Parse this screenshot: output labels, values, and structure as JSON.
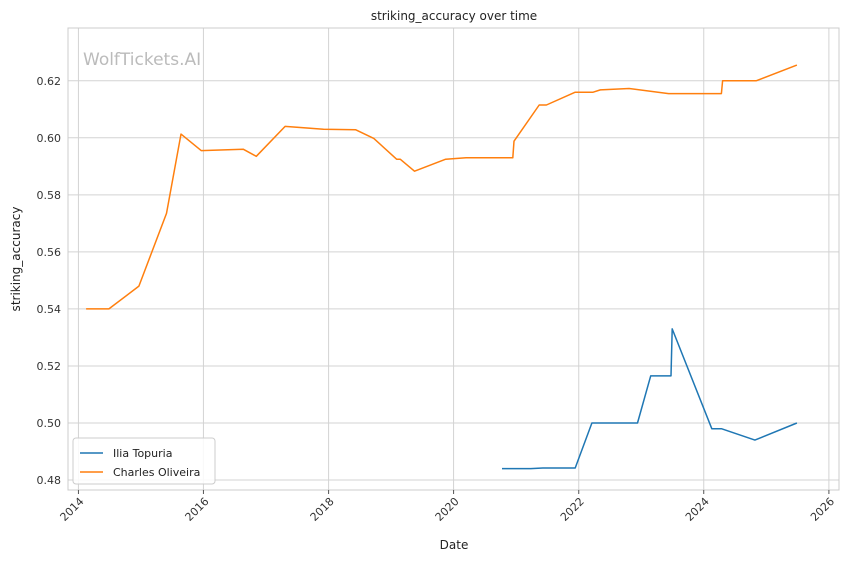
{
  "chart_data": {
    "type": "line",
    "title": "striking_accuracy over time",
    "xlabel": "Date",
    "ylabel": "striking_accuracy",
    "watermark": "WolfTickets.AI",
    "xlim": [
      "2013-11-01",
      "2026-03-01"
    ],
    "ylim": [
      0.4765,
      0.6385
    ],
    "x_ticks": [
      "2014",
      "2016",
      "2018",
      "2020",
      "2022",
      "2024",
      "2026"
    ],
    "y_ticks": [
      "0.48",
      "0.50",
      "0.52",
      "0.54",
      "0.56",
      "0.58",
      "0.60",
      "0.62"
    ],
    "grid": true,
    "legend_position": "lower-left",
    "series": [
      {
        "name": "Ilia Topuria",
        "color": "#1f77b4",
        "points": [
          [
            "2020-10-10",
            0.484
          ],
          [
            "2021-03-27",
            0.484
          ],
          [
            "2021-06-05",
            0.4842
          ],
          [
            "2021-12-11",
            0.4842
          ],
          [
            "2022-03-19",
            0.5
          ],
          [
            "2022-06-04",
            0.5
          ],
          [
            "2022-12-10",
            0.5
          ],
          [
            "2023-02-25",
            0.5165
          ],
          [
            "2023-06-24",
            0.5165
          ],
          [
            "2023-07-01",
            0.533
          ],
          [
            "2024-02-17",
            0.498
          ],
          [
            "2024-04-13",
            0.498
          ],
          [
            "2024-10-26",
            0.494
          ],
          [
            "2025-06-28",
            0.5
          ]
        ]
      },
      {
        "name": "Charles Oliveira",
        "color": "#ff7f0e",
        "points": [
          [
            "2014-02-15",
            0.54
          ],
          [
            "2014-06-28",
            0.54
          ],
          [
            "2014-12-20",
            0.548
          ],
          [
            "2015-05-30",
            0.5735
          ],
          [
            "2015-08-23",
            0.6013
          ],
          [
            "2015-12-19",
            0.5955
          ],
          [
            "2016-08-20",
            0.596
          ],
          [
            "2016-11-05",
            0.5935
          ],
          [
            "2017-04-22",
            0.604
          ],
          [
            "2017-12-02",
            0.603
          ],
          [
            "2018-06-09",
            0.6028
          ],
          [
            "2018-09-22",
            0.5998
          ],
          [
            "2019-02-02",
            0.5925
          ],
          [
            "2019-02-23",
            0.5925
          ],
          [
            "2019-05-18",
            0.5883
          ],
          [
            "2019-11-16",
            0.5925
          ],
          [
            "2020-03-14",
            0.593
          ],
          [
            "2020-12-12",
            0.593
          ],
          [
            "2020-12-19",
            0.5988
          ],
          [
            "2021-05-15",
            0.6115
          ],
          [
            "2021-06-26",
            0.6115
          ],
          [
            "2021-12-11",
            0.616
          ],
          [
            "2022-03-26",
            0.616
          ],
          [
            "2022-05-07",
            0.6168
          ],
          [
            "2022-10-22",
            0.6173
          ],
          [
            "2023-06-10",
            0.6155
          ],
          [
            "2024-04-13",
            0.6155
          ],
          [
            "2024-04-20",
            0.62
          ],
          [
            "2024-11-02",
            0.62
          ],
          [
            "2025-06-28",
            0.6255
          ]
        ]
      }
    ]
  }
}
